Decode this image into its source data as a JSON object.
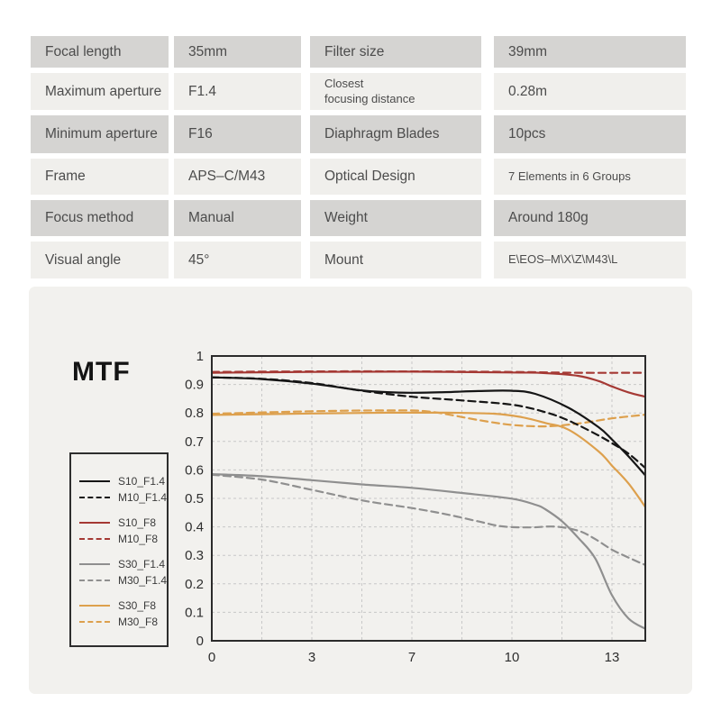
{
  "page": {
    "background": "#ffffff"
  },
  "spec_table": {
    "colors": {
      "row_dark": "#d5d4d2",
      "row_light": "#f0efec",
      "text": "#4c4c4c"
    },
    "rows": [
      {
        "cells": [
          {
            "text": "Focal length"
          },
          {
            "text": "35mm"
          },
          {
            "text": "Filter size"
          },
          {
            "text": "39mm"
          }
        ]
      },
      {
        "cells": [
          {
            "text": "Maximum aperture"
          },
          {
            "text": "F1.4"
          },
          {
            "text": "Closest\nfocusing distance"
          },
          {
            "text": "0.28m"
          }
        ]
      },
      {
        "cells": [
          {
            "text": "Minimum aperture"
          },
          {
            "text": "F16"
          },
          {
            "text": "Diaphragm Blades"
          },
          {
            "text": "10pcs"
          }
        ]
      },
      {
        "cells": [
          {
            "text": "Frame"
          },
          {
            "text": "APS–C/M43"
          },
          {
            "text": "Optical Design"
          },
          {
            "text": "7 Elements in 6 Groups"
          }
        ]
      },
      {
        "cells": [
          {
            "text": "Focus method"
          },
          {
            "text": "Manual"
          },
          {
            "text": "Weight"
          },
          {
            "text": "Around 180g"
          }
        ]
      },
      {
        "cells": [
          {
            "text": "Visual angle"
          },
          {
            "text": "45°"
          },
          {
            "text": "Mount"
          },
          {
            "text": "E\\EOS–M\\X\\Z\\M43\\L"
          }
        ]
      }
    ]
  },
  "mtf": {
    "title": "MTF",
    "panel_bg": "#f2f1ee",
    "axis_color": "#2b2b2b",
    "grid_color": "#c8c8c8"
  },
  "chart_data": {
    "type": "line",
    "title": "MTF",
    "xlabel": "",
    "ylabel": "",
    "ylim": [
      0,
      1
    ],
    "grid": true,
    "legend_position": "outside-left",
    "y_ticks": [
      0,
      0.1,
      0.2,
      0.3,
      0.4,
      0.5,
      0.6,
      0.7,
      0.8,
      0.9,
      1
    ],
    "y_tick_labels_top_to_bottom": [
      "1",
      "0.9",
      "0.8",
      "0.7",
      "0.6",
      "0.5",
      "0.4",
      "0.3",
      "0.2",
      "0.1",
      "0"
    ],
    "x_ticks": [
      0,
      3,
      7,
      10,
      13
    ],
    "x_ticks_equally_spaced": true,
    "x_max": 14,
    "series": [
      {
        "name": "S10_F1.4",
        "color": "#151515",
        "dash": false,
        "points": [
          [
            0,
            0.925
          ],
          [
            1.5,
            0.919
          ],
          [
            3,
            0.903
          ],
          [
            5,
            0.879
          ],
          [
            6,
            0.873
          ],
          [
            7,
            0.871
          ],
          [
            8,
            0.873
          ],
          [
            9,
            0.877
          ],
          [
            10,
            0.878
          ],
          [
            10.7,
            0.867
          ],
          [
            11.7,
            0.818
          ],
          [
            12.6,
            0.75
          ],
          [
            13,
            0.707
          ],
          [
            13.5,
            0.647
          ],
          [
            14,
            0.581
          ]
        ]
      },
      {
        "name": "M10_F1.4",
        "color": "#151515",
        "dash": true,
        "points": [
          [
            0,
            0.925
          ],
          [
            1.5,
            0.92
          ],
          [
            3,
            0.905
          ],
          [
            5,
            0.878
          ],
          [
            7,
            0.857
          ],
          [
            8.5,
            0.844
          ],
          [
            10,
            0.829
          ],
          [
            11,
            0.803
          ],
          [
            11.7,
            0.773
          ],
          [
            12.5,
            0.727
          ],
          [
            13,
            0.694
          ],
          [
            13.5,
            0.657
          ],
          [
            14,
            0.607
          ]
        ]
      },
      {
        "name": "S10_F8",
        "color": "#a53934",
        "dash": false,
        "points": [
          [
            0,
            0.941
          ],
          [
            3,
            0.944
          ],
          [
            7,
            0.945
          ],
          [
            10,
            0.942
          ],
          [
            11,
            0.94
          ],
          [
            12,
            0.93
          ],
          [
            12.6,
            0.912
          ],
          [
            13,
            0.893
          ],
          [
            13.5,
            0.872
          ],
          [
            14,
            0.857
          ]
        ]
      },
      {
        "name": "M10_F8",
        "color": "#a53934",
        "dash": true,
        "points": [
          [
            0,
            0.944
          ],
          [
            3,
            0.946
          ],
          [
            7,
            0.946
          ],
          [
            10,
            0.944
          ],
          [
            12,
            0.941
          ],
          [
            14,
            0.941
          ]
        ]
      },
      {
        "name": "S30_F1.4",
        "color": "#8f8f8f",
        "dash": false,
        "points": [
          [
            0,
            0.585
          ],
          [
            1.5,
            0.578
          ],
          [
            3,
            0.564
          ],
          [
            5,
            0.549
          ],
          [
            7,
            0.537
          ],
          [
            8.5,
            0.519
          ],
          [
            10,
            0.499
          ],
          [
            10.7,
            0.478
          ],
          [
            11,
            0.462
          ],
          [
            11.5,
            0.42
          ],
          [
            12,
            0.36
          ],
          [
            12.5,
            0.289
          ],
          [
            13,
            0.16
          ],
          [
            13.5,
            0.078
          ],
          [
            14,
            0.042
          ]
        ]
      },
      {
        "name": "M30_F1.4",
        "color": "#8f8f8f",
        "dash": true,
        "points": [
          [
            0,
            0.583
          ],
          [
            1.5,
            0.566
          ],
          [
            3,
            0.53
          ],
          [
            5,
            0.493
          ],
          [
            7,
            0.466
          ],
          [
            8,
            0.445
          ],
          [
            9,
            0.419
          ],
          [
            9.7,
            0.402
          ],
          [
            10.5,
            0.398
          ],
          [
            11.3,
            0.401
          ],
          [
            12,
            0.386
          ],
          [
            12.5,
            0.357
          ],
          [
            13,
            0.32
          ],
          [
            13.5,
            0.292
          ],
          [
            14,
            0.266
          ]
        ]
      },
      {
        "name": "S30_F8",
        "color": "#dda04d",
        "dash": false,
        "points": [
          [
            0,
            0.793
          ],
          [
            3,
            0.798
          ],
          [
            6,
            0.801
          ],
          [
            8,
            0.801
          ],
          [
            9.5,
            0.797
          ],
          [
            10.3,
            0.785
          ],
          [
            11,
            0.765
          ],
          [
            11.7,
            0.741
          ],
          [
            12.6,
            0.665
          ],
          [
            13,
            0.615
          ],
          [
            13.5,
            0.552
          ],
          [
            14,
            0.47
          ]
        ]
      },
      {
        "name": "M30_F8",
        "color": "#dda04d",
        "dash": true,
        "points": [
          [
            0,
            0.797
          ],
          [
            3,
            0.806
          ],
          [
            6,
            0.809
          ],
          [
            7.5,
            0.805
          ],
          [
            9,
            0.775
          ],
          [
            10,
            0.758
          ],
          [
            11,
            0.753
          ],
          [
            12,
            0.763
          ],
          [
            13,
            0.781
          ],
          [
            14,
            0.794
          ]
        ]
      }
    ]
  }
}
